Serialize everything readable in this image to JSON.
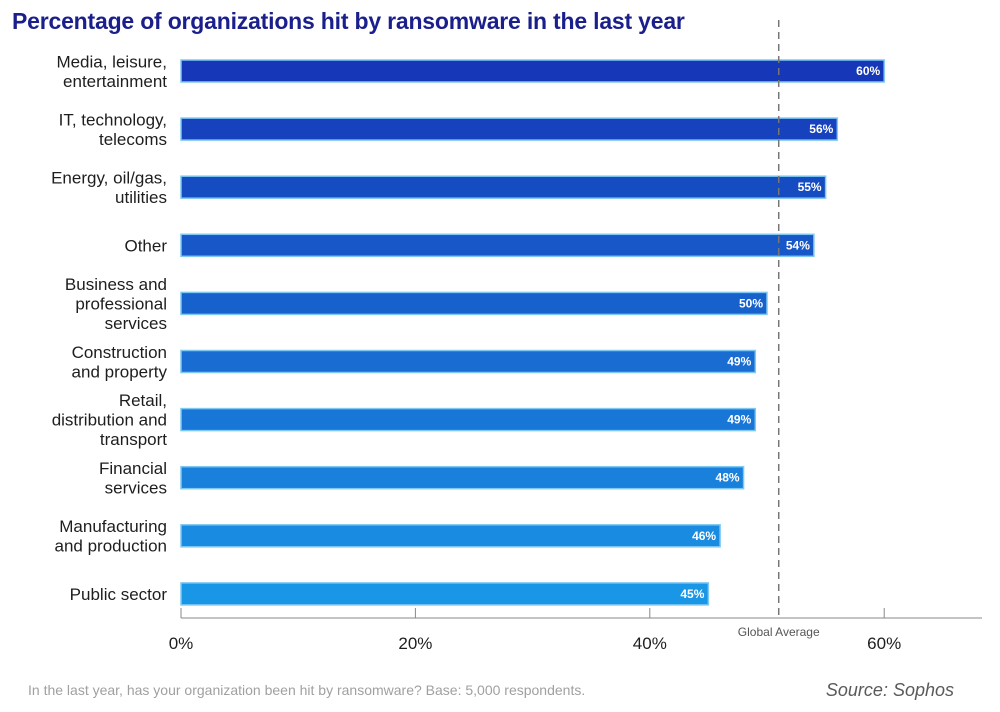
{
  "chart_data": {
    "type": "bar",
    "orientation": "horizontal",
    "title": "Percentage of organizations hit by ransomware in the last year",
    "categories": [
      [
        "Media, leisure,",
        "entertainment"
      ],
      [
        "IT, technology,",
        "telecoms"
      ],
      [
        "Energy, oil/gas,",
        "utilities"
      ],
      [
        "Other"
      ],
      [
        "Business and",
        "professional",
        "services"
      ],
      [
        "Construction",
        "and property"
      ],
      [
        "Retail,",
        "distribution and",
        "transport"
      ],
      [
        "Financial",
        "services"
      ],
      [
        "Manufacturing",
        "and production"
      ],
      [
        "Public sector"
      ]
    ],
    "values": [
      60,
      56,
      55,
      54,
      50,
      49,
      49,
      48,
      46,
      45
    ],
    "value_labels": [
      "60%",
      "56%",
      "55%",
      "54%",
      "50%",
      "49%",
      "49%",
      "48%",
      "46%",
      "45%"
    ],
    "xlim": [
      0,
      68
    ],
    "ticks": [
      0,
      20,
      40,
      60
    ],
    "tick_labels": [
      "0%",
      "20%",
      "40%",
      "60%"
    ],
    "reference_line": {
      "label": "Global Average",
      "value": 51
    },
    "colors": {
      "bar_top": "#1537b8",
      "bar_bottom": "#1a96e6",
      "bar_edge": "#7ec8f2",
      "title": "#1a1f8c"
    },
    "grid": false
  },
  "footer": {
    "question": "In the last year, has your organization been hit by ransomware? Base: 5,000 respondents.",
    "source": "Source: Sophos"
  }
}
